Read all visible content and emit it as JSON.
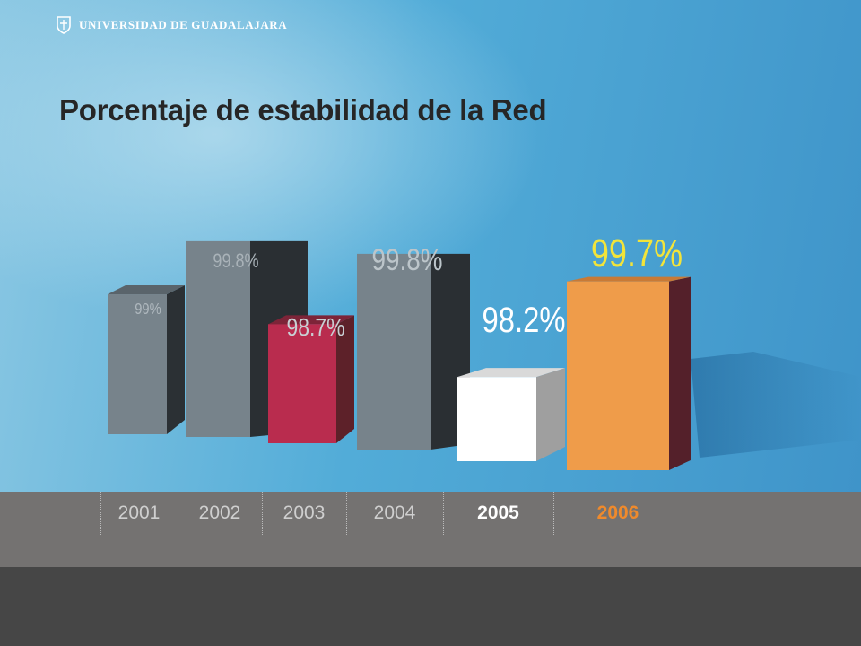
{
  "header": {
    "logo_text": "UNIVERSIDAD DE GUADALAJARA",
    "logo_icon": "university-crest-icon"
  },
  "title": "Porcentaje de estabilidad de la Red",
  "colors": {
    "gray_bar": "#77838b",
    "red_bar": "#b92c4e",
    "white_bar": "#ffffff",
    "orange_bar": "#ef9c4a",
    "year_default": "#cfcfcf",
    "year_2005": "#ffffff",
    "year_2006": "#ef8a2c"
  },
  "chart_data": {
    "type": "bar",
    "title": "Porcentaje de estabilidad de la Red",
    "categories": [
      "2001",
      "2002",
      "2003",
      "2004",
      "2005",
      "2006"
    ],
    "values": [
      99,
      99.8,
      98.7,
      99.8,
      98.2,
      99.7
    ],
    "value_labels": [
      "99%",
      "99.8%",
      "98.7%",
      "99.8%",
      "98.2%",
      "99.7%"
    ],
    "unit": "%",
    "style": "3d-bar",
    "grid": false,
    "legend": "none"
  }
}
